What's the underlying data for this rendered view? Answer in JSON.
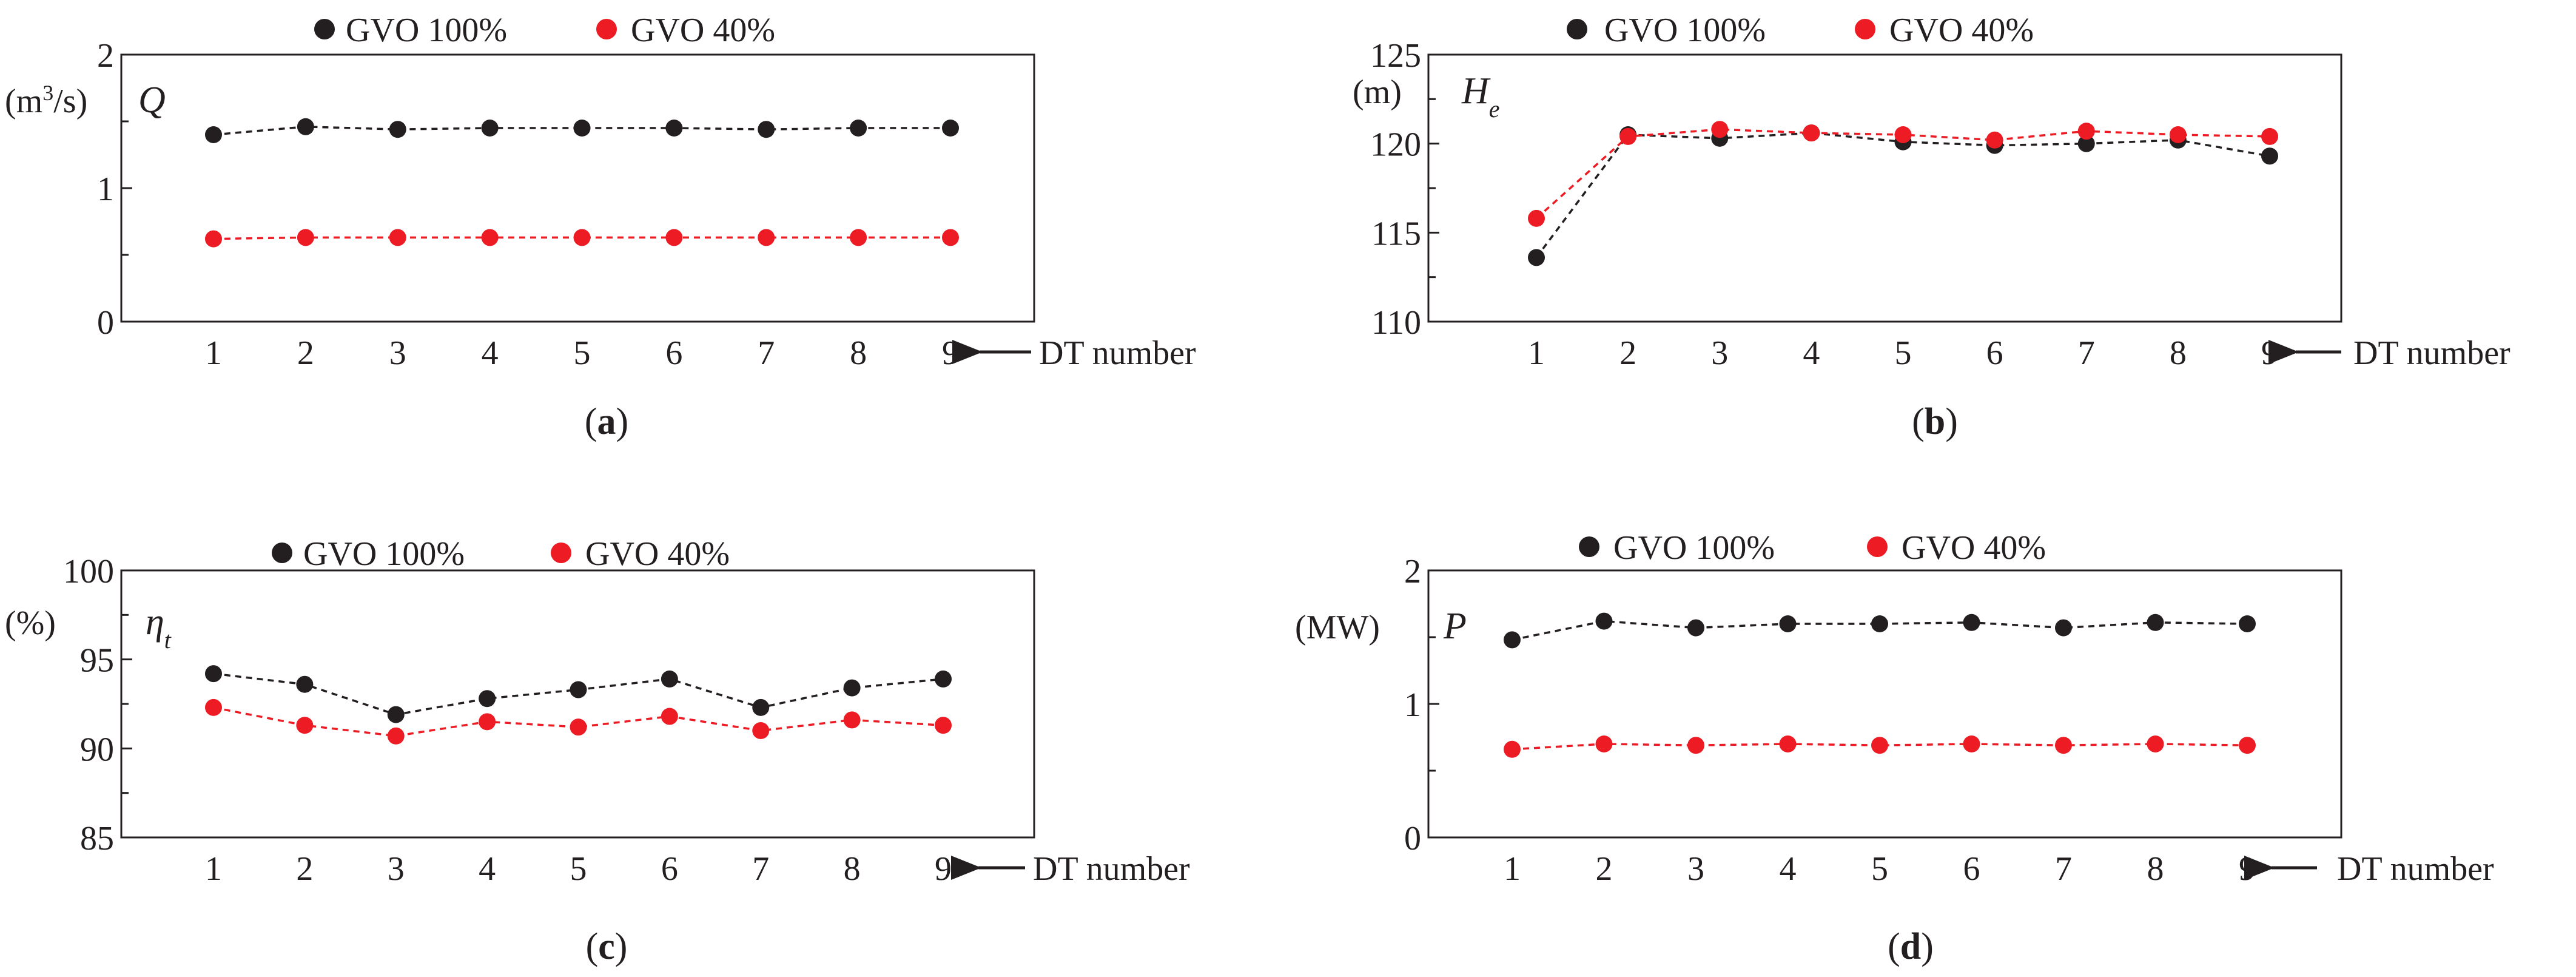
{
  "figure": {
    "legend": [
      "GVO 100%",
      "GVO 40%"
    ],
    "x_axis_note": "DT number",
    "colors": {
      "gvo100": "#231f20",
      "gvo40": "#ed1c24",
      "axis": "#231f20"
    }
  },
  "chart_data": [
    {
      "type": "line",
      "panel": "a",
      "caption": "(a)",
      "unit": "(m³/s)",
      "quantity": "Q",
      "x": [
        1,
        2,
        3,
        4,
        5,
        6,
        7,
        8,
        9
      ],
      "ylim": [
        0,
        2
      ],
      "yticks": [
        0,
        1,
        2
      ],
      "series": [
        {
          "name": "GVO 100%",
          "values": [
            1.4,
            1.46,
            1.44,
            1.45,
            1.45,
            1.45,
            1.44,
            1.45,
            1.45
          ]
        },
        {
          "name": "GVO 40%",
          "values": [
            0.62,
            0.63,
            0.63,
            0.63,
            0.63,
            0.63,
            0.63,
            0.63,
            0.63
          ]
        }
      ]
    },
    {
      "type": "line",
      "panel": "b",
      "caption": "(b)",
      "unit": "(m)",
      "quantity": "He",
      "quantity_main": "H",
      "quantity_sub": "e",
      "x": [
        1,
        2,
        3,
        4,
        5,
        6,
        7,
        8,
        9
      ],
      "ylim": [
        110,
        125
      ],
      "yticks": [
        110,
        115,
        120,
        125
      ],
      "series": [
        {
          "name": "GVO 100%",
          "values": [
            113.6,
            120.5,
            120.3,
            120.6,
            120.1,
            119.9,
            120.0,
            120.2,
            119.3
          ]
        },
        {
          "name": "GVO 40%",
          "values": [
            115.8,
            120.4,
            120.8,
            120.6,
            120.5,
            120.2,
            120.7,
            120.5,
            120.4
          ]
        }
      ]
    },
    {
      "type": "line",
      "panel": "c",
      "caption": "(c)",
      "unit": "(%)",
      "quantity": "ηt",
      "quantity_main": "η",
      "quantity_sub": "t",
      "x": [
        1,
        2,
        3,
        4,
        5,
        6,
        7,
        8,
        9
      ],
      "ylim": [
        85,
        100
      ],
      "yticks": [
        85,
        90,
        95,
        100
      ],
      "series": [
        {
          "name": "GVO 100%",
          "values": [
            94.2,
            93.6,
            91.9,
            92.8,
            93.3,
            93.9,
            92.3,
            93.4,
            93.9
          ]
        },
        {
          "name": "GVO 40%",
          "values": [
            92.3,
            91.3,
            90.7,
            91.5,
            91.2,
            91.8,
            91.0,
            91.6,
            91.3
          ]
        }
      ]
    },
    {
      "type": "line",
      "panel": "d",
      "caption": "(d)",
      "unit": "(MW)",
      "quantity": "P",
      "x": [
        1,
        2,
        3,
        4,
        5,
        6,
        7,
        8,
        9
      ],
      "ylim": [
        0,
        2
      ],
      "yticks": [
        0,
        1,
        2
      ],
      "series": [
        {
          "name": "GVO 100%",
          "values": [
            1.48,
            1.62,
            1.57,
            1.6,
            1.6,
            1.61,
            1.57,
            1.61,
            1.6
          ]
        },
        {
          "name": "GVO 40%",
          "values": [
            0.66,
            0.7,
            0.69,
            0.7,
            0.69,
            0.7,
            0.69,
            0.7,
            0.69
          ]
        }
      ]
    }
  ]
}
